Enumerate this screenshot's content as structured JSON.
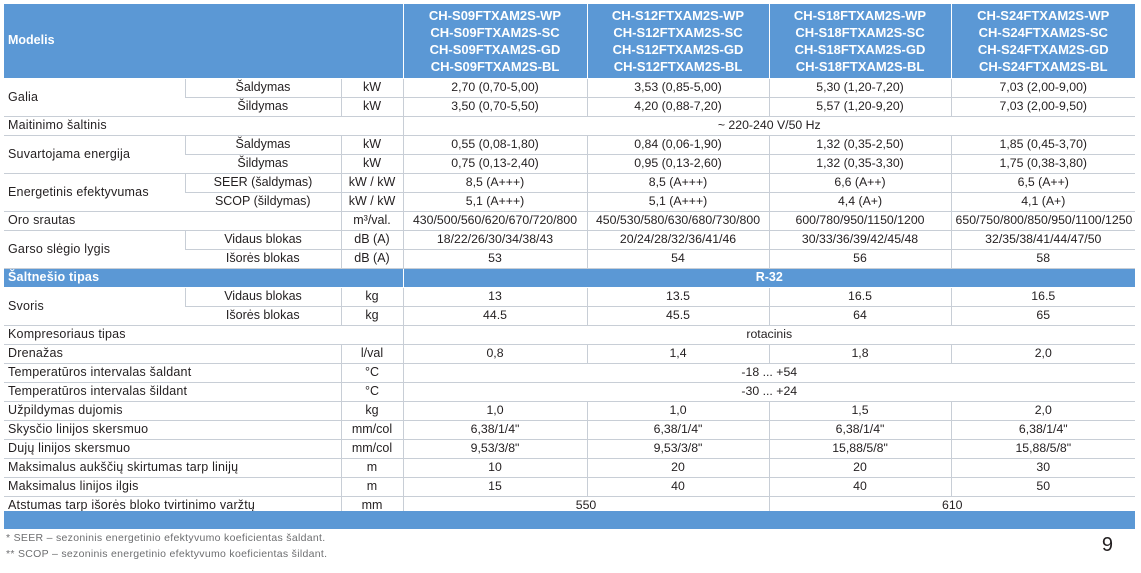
{
  "header": {
    "modelis": "Modelis",
    "models": [
      [
        "CH-S09FTXAM2S-WP",
        "CH-S09FTXAM2S-SC",
        "CH-S09FTXAM2S-GD",
        "CH-S09FTXAM2S-BL"
      ],
      [
        "CH-S12FTXAM2S-WP",
        "CH-S12FTXAM2S-SC",
        "CH-S12FTXAM2S-GD",
        "CH-S12FTXAM2S-BL"
      ],
      [
        "CH-S18FTXAM2S-WP",
        "CH-S18FTXAM2S-SC",
        "CH-S18FTXAM2S-GD",
        "CH-S18FTXAM2S-BL"
      ],
      [
        "CH-S24FTXAM2S-WP",
        "CH-S24FTXAM2S-SC",
        "CH-S24FTXAM2S-GD",
        "CH-S24FTXAM2S-BL"
      ]
    ]
  },
  "rows": {
    "galia": {
      "label": "Galia",
      "sub1": "Šaldymas",
      "unit1": "kW",
      "v1": [
        "2,70 (0,70-5,00)",
        "3,53 (0,85-5,00)",
        "5,30 (1,20-7,20)",
        "7,03 (2,00-9,00)"
      ],
      "sub2": "Šildymas",
      "unit2": "kW",
      "v2": [
        "3,50 (0,70-5,50)",
        "4,20 (0,88-7,20)",
        "5,57 (1,20-9,20)",
        "7,03 (2,00-9,50)"
      ]
    },
    "maitinimo": {
      "label": "Maitinimo šaltinis",
      "value": "~ 220-240 V/50 Hz"
    },
    "suvartojama": {
      "label": "Suvartojama energija",
      "sub1": "Šaldymas",
      "unit1": "kW",
      "v1": [
        "0,55 (0,08-1,80)",
        "0,84 (0,06-1,90)",
        "1,32 (0,35-2,50)",
        "1,85 (0,45-3,70)"
      ],
      "sub2": "Šildymas",
      "unit2": "kW",
      "v2": [
        "0,75 (0,13-2,40)",
        "0,95 (0,13-2,60)",
        "1,32 (0,35-3,30)",
        "1,75 (0,38-3,80)"
      ]
    },
    "energetinis": {
      "label": "Energetinis efektyvumas",
      "sub1": "SEER (šaldymas)",
      "unit1": "kW / kW",
      "v1": [
        "8,5 (A+++)",
        "8,5 (A+++)",
        "6,6 (A++)",
        "6,5 (A++)"
      ],
      "sub2": "SCOP (šildymas)",
      "unit2": "kW / kW",
      "v2": [
        "5,1 (A+++)",
        "5,1 (A+++)",
        "4,4 (A+)",
        "4,1 (A+)"
      ]
    },
    "oro": {
      "label": "Oro srautas",
      "unit": "m³/val.",
      "v": [
        "430/500/560/620/670/720/800",
        "450/530/580/630/680/730/800",
        "600/780/950/1150/1200",
        "650/750/800/850/950/1100/1250"
      ]
    },
    "garso": {
      "label": "Garso slėgio lygis",
      "sub1": "Vidaus blokas",
      "unit1": "dB (A)",
      "v1": [
        "18/22/26/30/34/38/43",
        "20/24/28/32/36/41/46",
        "30/33/36/39/42/45/48",
        "32/35/38/41/44/47/50"
      ],
      "sub2": "Išorės blokas",
      "unit2": "dB (A)",
      "v2": [
        "53",
        "54",
        "56",
        "58"
      ]
    },
    "saltnesio": {
      "label": "Šaltnešio tipas",
      "value": "R-32"
    },
    "svoris": {
      "label": "Svoris",
      "sub1": "Vidaus blokas",
      "unit1": "kg",
      "v1": [
        "13",
        "13.5",
        "16.5",
        "16.5"
      ],
      "sub2": "Išorės blokas",
      "unit2": "kg",
      "v2": [
        "44.5",
        "45.5",
        "64",
        "65"
      ]
    },
    "kompresoriaus": {
      "label": "Kompresoriaus tipas",
      "value": "rotacinis"
    },
    "drenazas": {
      "label": "Drenažas",
      "unit": "l/val",
      "v": [
        "0,8",
        "1,4",
        "1,8",
        "2,0"
      ]
    },
    "temp_sald": {
      "label": "Temperatūros intervalas šaldant",
      "unit": "°C",
      "value": "-18 ... +54"
    },
    "temp_sild": {
      "label": "Temperatūros intervalas šildant",
      "unit": "°C",
      "value": "-30 ... +24"
    },
    "uzpildymas": {
      "label": "Užpildymas dujomis",
      "unit": "kg",
      "v": [
        "1,0",
        "1,0",
        "1,5",
        "2,0"
      ]
    },
    "skyscio": {
      "label": "Skysčio linijos skersmuo",
      "unit": "mm/col",
      "v": [
        "6,38/1/4\"",
        "6,38/1/4\"",
        "6,38/1/4\"",
        "6,38/1/4\""
      ]
    },
    "duju": {
      "label": "Dujų linijos skersmuo",
      "unit": "mm/col",
      "v": [
        "9,53/3/8\"",
        "9,53/3/8\"",
        "15,88/5/8\"",
        "15,88/5/8\""
      ]
    },
    "aukscio": {
      "label": "Maksimalus aukščių skirtumas tarp linijų",
      "unit": "m",
      "v": [
        "10",
        "20",
        "20",
        "30"
      ]
    },
    "ilgis": {
      "label": "Maksimalus linijos ilgis",
      "unit": "m",
      "v": [
        "15",
        "40",
        "40",
        "50"
      ]
    },
    "atstumas": {
      "label": "Atstumas tarp išorės bloko tvirtinimo varžtų",
      "unit": "mm",
      "v": [
        "550",
        "610"
      ]
    }
  },
  "footnotes": [
    "* SEER – sezoninis energetinio efektyvumo koeficientas šaldant.",
    "** SCOP – sezoninis energetinio efektyvumo koeficientas šildant."
  ],
  "page_number": "9"
}
